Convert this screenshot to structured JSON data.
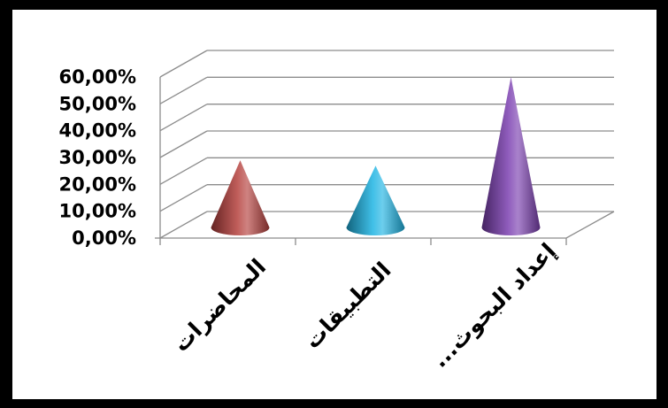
{
  "chart_data": {
    "type": "bar",
    "style": "3d-cone",
    "categories": [
      "المحاضرات",
      "التطبيقات",
      "إعداد البحوث..."
    ],
    "values": [
      25,
      23,
      56
    ],
    "y_tick_labels": [
      "0,00%",
      "10,00%",
      "20,00%",
      "30,00%",
      "40,00%",
      "50,00%",
      "60,00%"
    ],
    "ylim": [
      0,
      60
    ],
    "grid": true,
    "colors": {
      "series": [
        "#b5403d",
        "#1eb4e3",
        "#7b3fb0"
      ],
      "grid": "#8c8c8c",
      "frame": "#000000",
      "background": "#ffffff"
    }
  }
}
